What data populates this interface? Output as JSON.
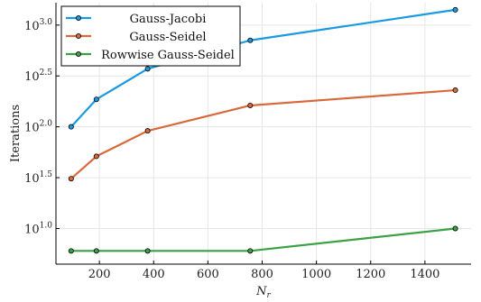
{
  "chart_data": {
    "type": "line",
    "title": "",
    "xlabel": "N",
    "xlabel_subscript": "r",
    "ylabel": "Iterations",
    "xlim": [
      40,
      1570
    ],
    "ylim": [
      0.65,
      3.22
    ],
    "y_scale": "log10",
    "x_ticks": [
      200,
      400,
      600,
      800,
      1000,
      1200,
      1400
    ],
    "y_ticks": [
      {
        "value": 1.0,
        "base": "10",
        "exp": "1.0"
      },
      {
        "value": 1.5,
        "base": "10",
        "exp": "1.5"
      },
      {
        "value": 2.0,
        "base": "10",
        "exp": "2.0"
      },
      {
        "value": 2.5,
        "base": "10",
        "exp": "2.5"
      },
      {
        "value": 3.0,
        "base": "10",
        "exp": "3.0"
      }
    ],
    "grid": true,
    "legend_position": "top-left",
    "series": [
      {
        "name": "Gauss-Jacobi",
        "color": "#1a9ae0",
        "x": [
          96,
          189,
          378,
          756,
          1512
        ],
        "y": [
          2.0,
          2.27,
          2.57,
          2.85,
          3.15
        ]
      },
      {
        "name": "Gauss-Seidel",
        "color": "#d8693a",
        "x": [
          96,
          189,
          378,
          756,
          1512
        ],
        "y": [
          1.49,
          1.71,
          1.96,
          2.21,
          2.36
        ]
      },
      {
        "name": "Rowwise Gauss-Seidel",
        "color": "#3aa147",
        "x": [
          96,
          189,
          378,
          756,
          1512
        ],
        "y": [
          0.78,
          0.78,
          0.78,
          0.78,
          1.0
        ]
      }
    ]
  }
}
